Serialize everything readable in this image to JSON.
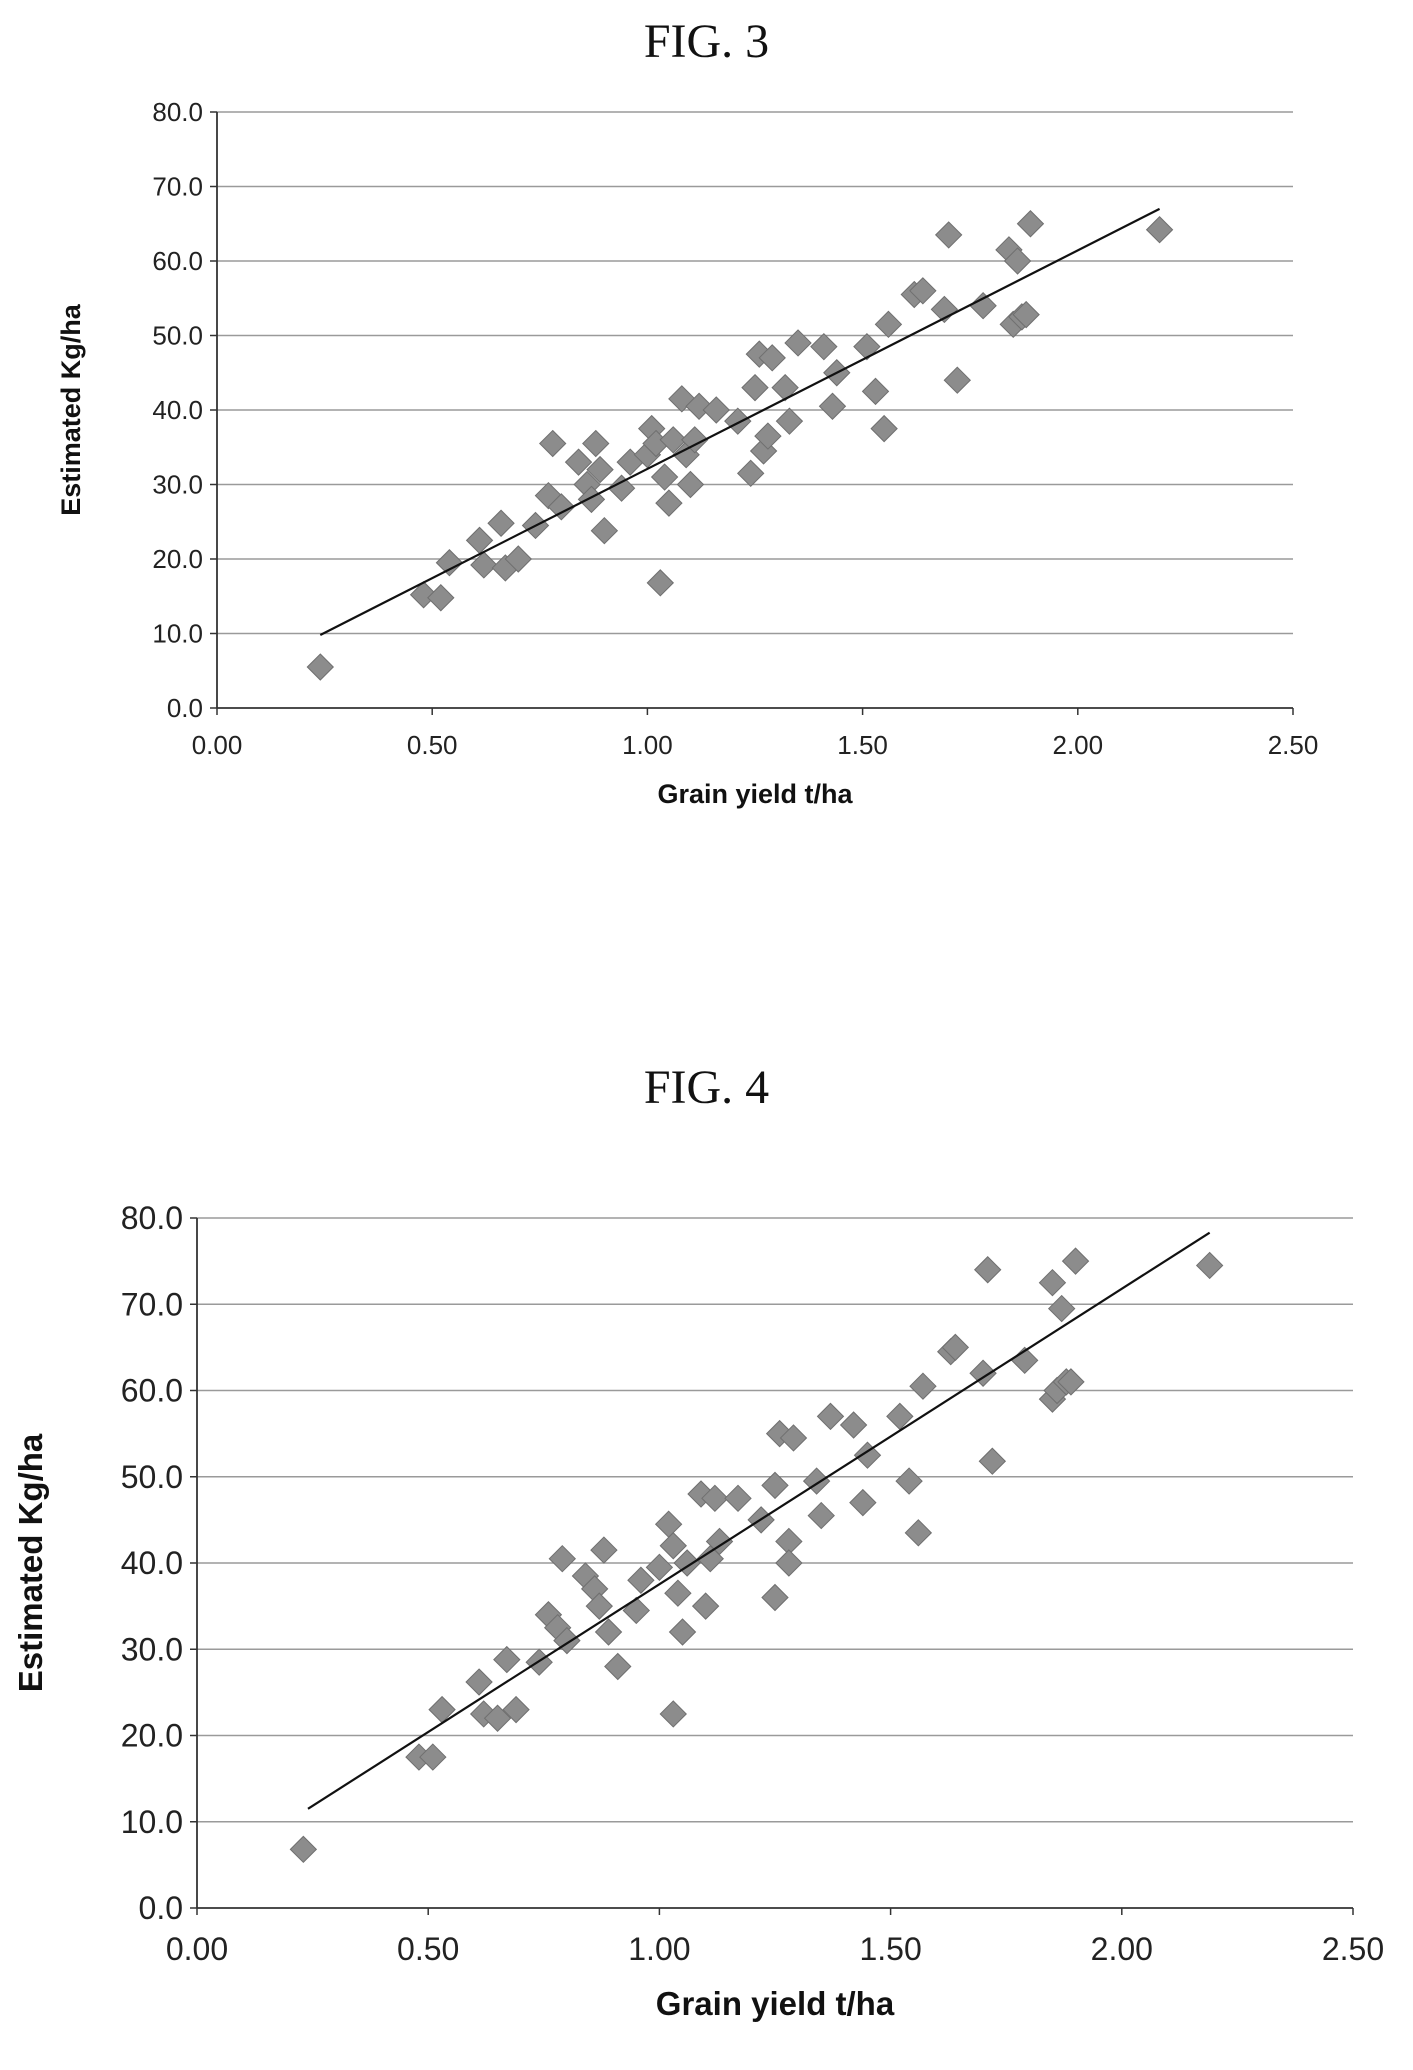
{
  "figures": [
    {
      "title": "FIG. 3"
    },
    {
      "title": "FIG. 4"
    }
  ],
  "chart_data": [
    {
      "type": "scatter",
      "title": "",
      "xlabel": "Grain yield t/ha",
      "ylabel": "Estimated Kg/ha",
      "xlim": [
        0,
        2.5
      ],
      "ylim": [
        0,
        80
      ],
      "xticks": [
        "0.00",
        "0.50",
        "1.00",
        "1.50",
        "2.00",
        "2.50"
      ],
      "yticks": [
        "0.0",
        "10.0",
        "20.0",
        "30.0",
        "40.0",
        "50.0",
        "60.0",
        "70.0",
        "80.0"
      ],
      "grid": "horizontal",
      "marker": "diamond",
      "marker_color": "#8c8c8c",
      "trendline": {
        "x": [
          0.24,
          2.19
        ],
        "y": [
          9.8,
          67.0
        ]
      },
      "points": [
        [
          0.24,
          5.5
        ],
        [
          0.48,
          15.2
        ],
        [
          0.52,
          14.8
        ],
        [
          0.54,
          19.5
        ],
        [
          0.61,
          22.5
        ],
        [
          0.62,
          19.2
        ],
        [
          0.66,
          24.8
        ],
        [
          0.67,
          18.8
        ],
        [
          0.7,
          20.0
        ],
        [
          0.74,
          24.5
        ],
        [
          0.77,
          28.5
        ],
        [
          0.78,
          35.5
        ],
        [
          0.8,
          27.0
        ],
        [
          0.84,
          33.0
        ],
        [
          0.86,
          30.0
        ],
        [
          0.87,
          28.0
        ],
        [
          0.88,
          35.5
        ],
        [
          0.89,
          32.0
        ],
        [
          0.9,
          23.8
        ],
        [
          0.94,
          29.5
        ],
        [
          0.96,
          33.0
        ],
        [
          1.0,
          34.0
        ],
        [
          1.01,
          37.5
        ],
        [
          1.02,
          35.5
        ],
        [
          1.03,
          16.8
        ],
        [
          1.04,
          31.0
        ],
        [
          1.05,
          27.5
        ],
        [
          1.06,
          36.0
        ],
        [
          1.08,
          41.5
        ],
        [
          1.09,
          34.0
        ],
        [
          1.1,
          30.0
        ],
        [
          1.11,
          36.0
        ],
        [
          1.12,
          40.5
        ],
        [
          1.16,
          40.0
        ],
        [
          1.21,
          38.5
        ],
        [
          1.24,
          31.5
        ],
        [
          1.25,
          43.0
        ],
        [
          1.26,
          47.5
        ],
        [
          1.27,
          34.5
        ],
        [
          1.28,
          36.5
        ],
        [
          1.29,
          47.0
        ],
        [
          1.32,
          43.0
        ],
        [
          1.33,
          38.5
        ],
        [
          1.35,
          49.0
        ],
        [
          1.41,
          48.5
        ],
        [
          1.43,
          40.5
        ],
        [
          1.44,
          45.0
        ],
        [
          1.51,
          48.5
        ],
        [
          1.53,
          42.5
        ],
        [
          1.55,
          37.5
        ],
        [
          1.56,
          51.5
        ],
        [
          1.62,
          55.5
        ],
        [
          1.64,
          56.0
        ],
        [
          1.69,
          53.5
        ],
        [
          1.7,
          63.5
        ],
        [
          1.72,
          44.0
        ],
        [
          1.78,
          54.0
        ],
        [
          1.84,
          61.5
        ],
        [
          1.85,
          51.5
        ],
        [
          1.86,
          60.0
        ],
        [
          1.87,
          52.5
        ],
        [
          1.88,
          52.8
        ],
        [
          1.89,
          65.0
        ],
        [
          2.19,
          64.2
        ]
      ]
    },
    {
      "type": "scatter",
      "title": "",
      "xlabel": "Grain yield t/ha",
      "ylabel": "Estimated Kg/ha",
      "xlim": [
        0,
        2.5
      ],
      "ylim": [
        0,
        80
      ],
      "xticks": [
        "0.00",
        "0.50",
        "1.00",
        "1.50",
        "2.00",
        "2.50"
      ],
      "yticks": [
        "0.0",
        "10.0",
        "20.0",
        "30.0",
        "40.0",
        "50.0",
        "60.0",
        "70.0",
        "80.0"
      ],
      "grid": "horizontal",
      "marker": "diamond",
      "marker_color": "#8c8c8c",
      "trendline": {
        "x": [
          0.24,
          2.19
        ],
        "y": [
          11.5,
          78.3
        ]
      },
      "points": [
        [
          0.23,
          6.8
        ],
        [
          0.48,
          17.5
        ],
        [
          0.51,
          17.5
        ],
        [
          0.53,
          23.0
        ],
        [
          0.61,
          26.2
        ],
        [
          0.62,
          22.5
        ],
        [
          0.65,
          22.0
        ],
        [
          0.67,
          28.8
        ],
        [
          0.69,
          23.0
        ],
        [
          0.74,
          28.5
        ],
        [
          0.76,
          34.0
        ],
        [
          0.78,
          32.5
        ],
        [
          0.79,
          40.5
        ],
        [
          0.8,
          31.0
        ],
        [
          0.84,
          38.5
        ],
        [
          0.86,
          37.0
        ],
        [
          0.87,
          35.0
        ],
        [
          0.88,
          41.5
        ],
        [
          0.89,
          32.0
        ],
        [
          0.91,
          28.0
        ],
        [
          0.95,
          34.5
        ],
        [
          0.96,
          38.0
        ],
        [
          1.0,
          39.5
        ],
        [
          1.02,
          44.5
        ],
        [
          1.03,
          42.0
        ],
        [
          1.03,
          22.5
        ],
        [
          1.04,
          36.5
        ],
        [
          1.05,
          32.0
        ],
        [
          1.06,
          40.0
        ],
        [
          1.09,
          48.0
        ],
        [
          1.1,
          35.0
        ],
        [
          1.11,
          40.5
        ],
        [
          1.12,
          47.5
        ],
        [
          1.13,
          42.5
        ],
        [
          1.17,
          47.5
        ],
        [
          1.22,
          45.0
        ],
        [
          1.25,
          49.0
        ],
        [
          1.25,
          36.0
        ],
        [
          1.26,
          55.0
        ],
        [
          1.28,
          42.5
        ],
        [
          1.28,
          40.0
        ],
        [
          1.29,
          54.5
        ],
        [
          1.34,
          49.5
        ],
        [
          1.35,
          45.5
        ],
        [
          1.37,
          57.0
        ],
        [
          1.42,
          56.0
        ],
        [
          1.44,
          47.0
        ],
        [
          1.45,
          52.5
        ],
        [
          1.52,
          57.0
        ],
        [
          1.54,
          49.5
        ],
        [
          1.56,
          43.5
        ],
        [
          1.57,
          60.5
        ],
        [
          1.63,
          64.5
        ],
        [
          1.64,
          65.0
        ],
        [
          1.7,
          62.0
        ],
        [
          1.71,
          74.0
        ],
        [
          1.72,
          51.8
        ],
        [
          1.79,
          63.5
        ],
        [
          1.85,
          72.5
        ],
        [
          1.85,
          59.0
        ],
        [
          1.86,
          60.0
        ],
        [
          1.87,
          69.5
        ],
        [
          1.88,
          61.0
        ],
        [
          1.89,
          61.0
        ],
        [
          1.9,
          75.0
        ],
        [
          2.19,
          74.5
        ]
      ]
    }
  ]
}
